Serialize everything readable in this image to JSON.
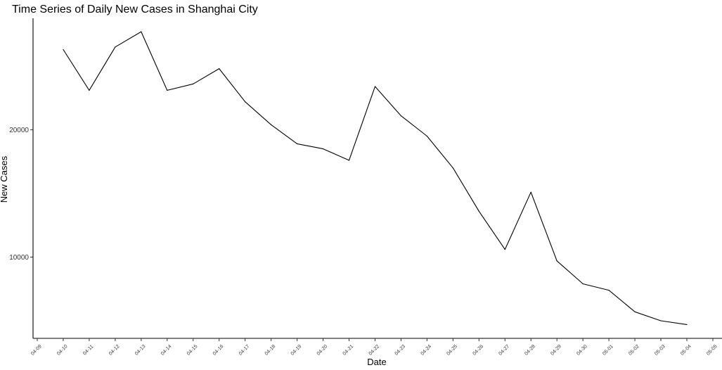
{
  "chart_data": {
    "type": "line",
    "title": "Time Series of Daily New Cases in Shanghai City",
    "xlabel": "Date",
    "ylabel": "New Cases",
    "x_ticks": [
      "04-09",
      "04-10",
      "04-11",
      "04-12",
      "04-13",
      "04-14",
      "04-15",
      "04-16",
      "04-17",
      "04-18",
      "04-19",
      "04-20",
      "04-21",
      "04-22",
      "04-23",
      "04-24",
      "04-25",
      "04-26",
      "04-27",
      "04-28",
      "04-29",
      "04-30",
      "05-01",
      "05-02",
      "05-03",
      "05-04",
      "05-05"
    ],
    "y_ticks": [
      10000,
      20000
    ],
    "x": [
      "04-10",
      "04-11",
      "04-12",
      "04-13",
      "04-14",
      "04-15",
      "04-16",
      "04-17",
      "04-18",
      "04-19",
      "04-20",
      "04-21",
      "04-22",
      "04-23",
      "04-24",
      "04-25",
      "04-26",
      "04-27",
      "04-28",
      "04-29",
      "04-30",
      "05-01",
      "05-02",
      "05-03",
      "05-04"
    ],
    "series": [
      {
        "values": [
          26300,
          23100,
          26500,
          27700,
          23100,
          23600,
          24800,
          22200,
          20400,
          18900,
          18500,
          17600,
          23400,
          21100,
          19500,
          17000,
          13600,
          10600,
          15100,
          9700,
          7900,
          7400,
          5700,
          5000,
          4700
        ],
        "color": "#000000"
      }
    ],
    "ylim": [
      3800,
      28900
    ],
    "grid": false,
    "legend": "none"
  }
}
